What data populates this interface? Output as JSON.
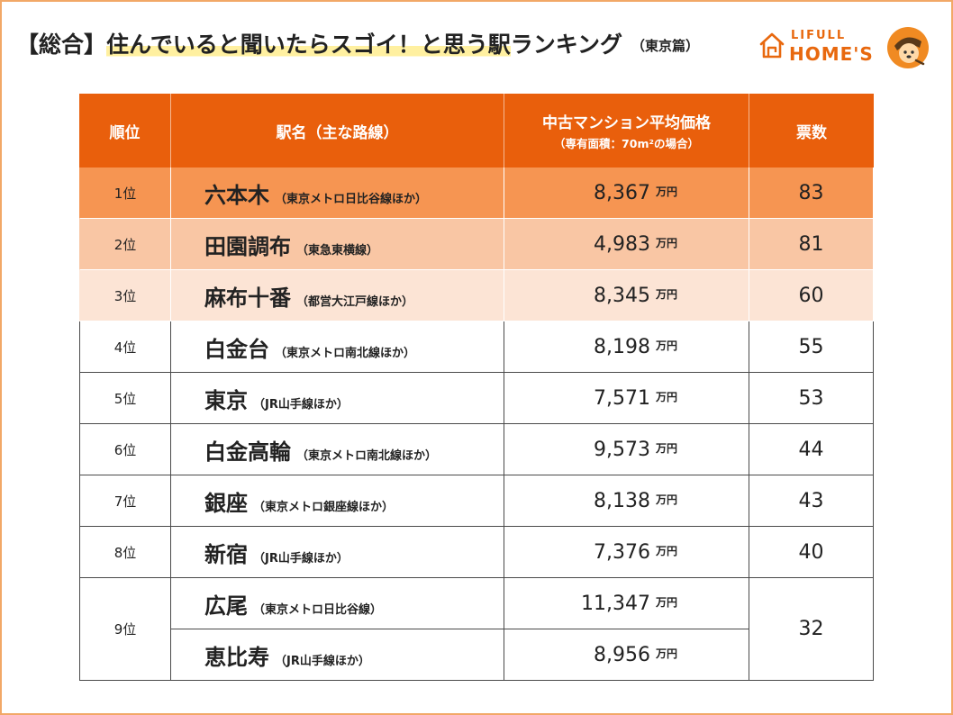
{
  "logo": {
    "top": "LIFULL",
    "bottom": "HOME'S"
  },
  "colors": {
    "header_bg": "#e95f0c",
    "row_bg": [
      "#f69552",
      "#f9c6a4",
      "#fce4d5"
    ],
    "accent": "#e8680e",
    "highlight": "#fff0a0",
    "frame": "#f2a867"
  },
  "chart_data": {
    "type": "table",
    "title": {
      "prefix": "【総合】",
      "highlight": "住んでいると聞いたらスゴイ！と思う駅",
      "rest": "ランキング",
      "suffix": "（東京篇）"
    },
    "columns": [
      {
        "label": "順位"
      },
      {
        "label": "駅名（主な路線）"
      },
      {
        "label": "中古マンション平均価格",
        "sublabel": "（専有面積：70m²の場合）"
      },
      {
        "label": "票数"
      }
    ],
    "unit": "万円",
    "rows": [
      {
        "rank": "1位",
        "votes": 83,
        "stations": [
          {
            "name": "六本木",
            "line": "（東京メトロ日比谷線ほか）",
            "price": "8,367"
          }
        ]
      },
      {
        "rank": "2位",
        "votes": 81,
        "stations": [
          {
            "name": "田園調布",
            "line": "（東急東横線）",
            "price": "4,983"
          }
        ]
      },
      {
        "rank": "3位",
        "votes": 60,
        "stations": [
          {
            "name": "麻布十番",
            "line": "（都営大江戸線ほか）",
            "price": "8,345"
          }
        ]
      },
      {
        "rank": "4位",
        "votes": 55,
        "stations": [
          {
            "name": "白金台",
            "line": "（東京メトロ南北線ほか）",
            "price": "8,198"
          }
        ]
      },
      {
        "rank": "5位",
        "votes": 53,
        "stations": [
          {
            "name": "東京",
            "line": "（JR山手線ほか）",
            "price": "7,571"
          }
        ]
      },
      {
        "rank": "6位",
        "votes": 44,
        "stations": [
          {
            "name": "白金高輪",
            "line": "（東京メトロ南北線ほか）",
            "price": "9,573"
          }
        ]
      },
      {
        "rank": "7位",
        "votes": 43,
        "stations": [
          {
            "name": "銀座",
            "line": "（東京メトロ銀座線ほか）",
            "price": "8,138"
          }
        ]
      },
      {
        "rank": "8位",
        "votes": 40,
        "stations": [
          {
            "name": "新宿",
            "line": "（JR山手線ほか）",
            "price": "7,376"
          }
        ]
      },
      {
        "rank": "9位",
        "votes": 32,
        "stations": [
          {
            "name": "広尾",
            "line": "（東京メトロ日比谷線）",
            "price": "11,347"
          },
          {
            "name": "恵比寿",
            "line": "（JR山手線ほか）",
            "price": "8,956"
          }
        ]
      }
    ]
  }
}
